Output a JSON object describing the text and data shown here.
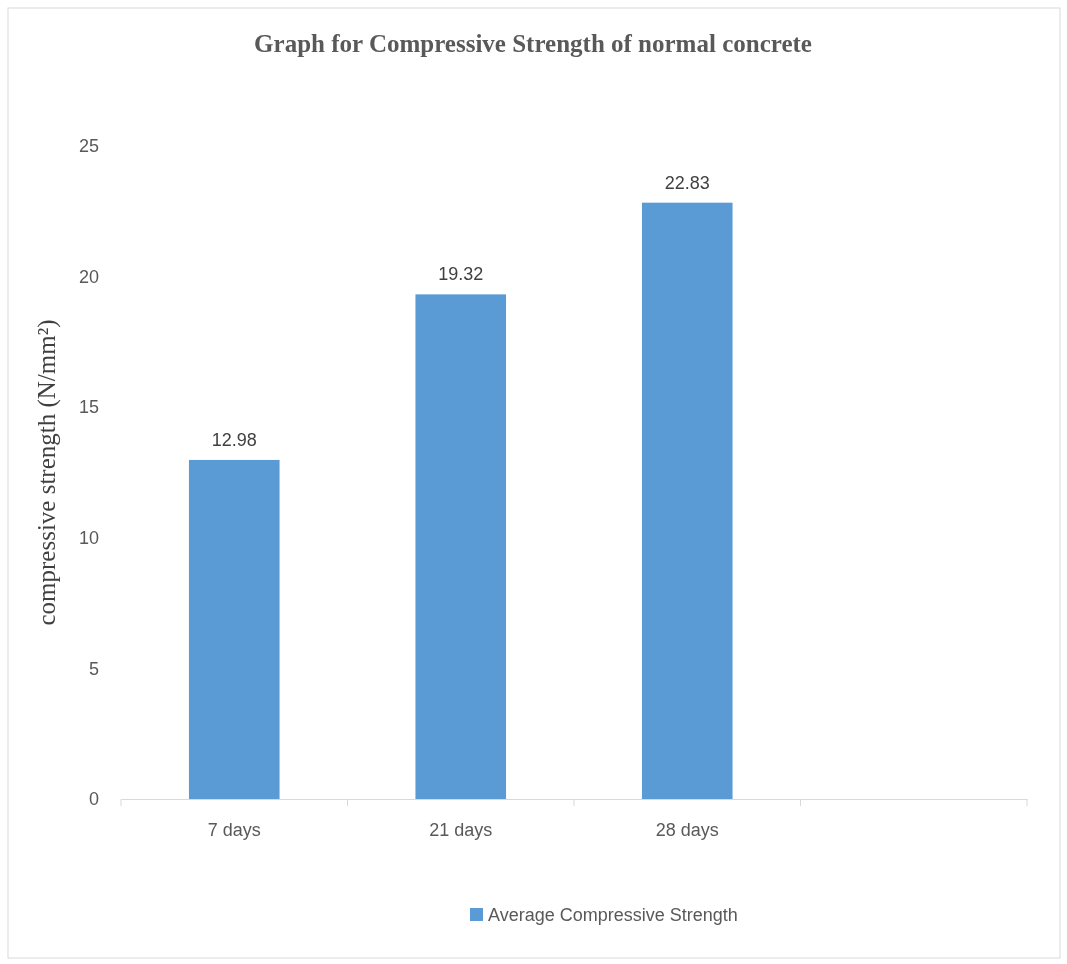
{
  "chart_data": {
    "type": "bar",
    "title": "Graph for Compressive Strength of normal concrete",
    "ylabel": "compressive strength (N/mm²)",
    "categories": [
      "7 days",
      "21 days",
      "28 days",
      null
    ],
    "series": [
      {
        "name": "Average Compressive Strength",
        "color": "#5b9bd5",
        "values": [
          12.98,
          19.32,
          22.83,
          null
        ]
      }
    ],
    "ylim": [
      0,
      25
    ],
    "yticks": [
      0,
      5,
      10,
      15,
      20,
      25
    ],
    "grid": false,
    "legend": "bottom",
    "data_labels": true
  }
}
